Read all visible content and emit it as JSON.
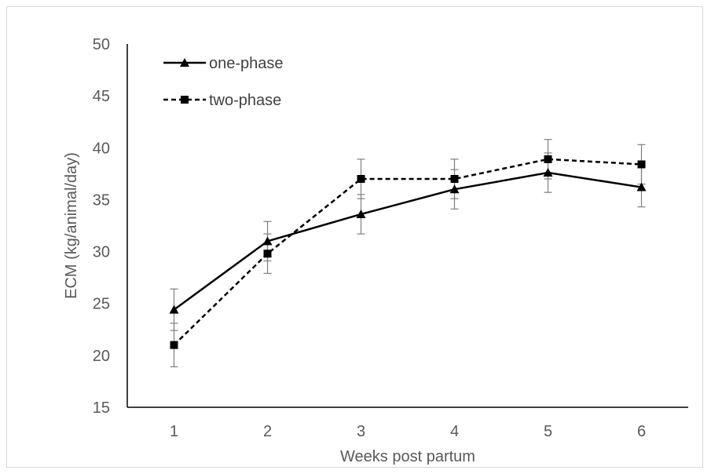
{
  "chart_data": {
    "type": "line",
    "title": "",
    "xlabel": "Weeks post partum",
    "ylabel": "ECM (kg/animal/day)",
    "categories": [
      "1",
      "2",
      "3",
      "4",
      "5",
      "6"
    ],
    "ylim": [
      15,
      50
    ],
    "yticks": [
      15,
      20,
      25,
      30,
      35,
      40,
      45,
      50
    ],
    "grid": false,
    "legend_position": "top-left",
    "series": [
      {
        "name": "one-phase",
        "line_style": "solid",
        "marker": "triangle",
        "color": "#000000",
        "values": [
          24.4,
          31.0,
          33.6,
          36.0,
          37.6,
          36.2
        ],
        "error": [
          2.0,
          1.9,
          1.9,
          1.9,
          1.9,
          1.9
        ]
      },
      {
        "name": "two-phase",
        "line_style": "dashed",
        "marker": "square",
        "color": "#000000",
        "values": [
          21.0,
          29.8,
          37.0,
          37.0,
          38.9,
          38.4
        ],
        "error": [
          2.1,
          1.9,
          1.9,
          1.9,
          1.9,
          1.9
        ]
      }
    ],
    "errorbar_color": "#7f7f7f"
  }
}
